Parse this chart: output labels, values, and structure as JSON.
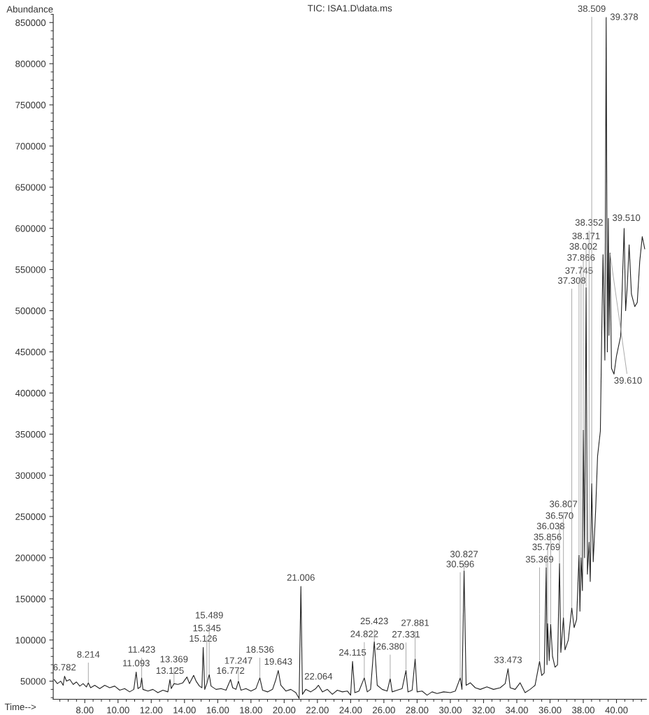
{
  "chart_data": {
    "type": "line",
    "title": "TIC: ISA1.D\\data.ms",
    "xlabel": "Time-->",
    "ylabel": "Abundance",
    "xlim": [
      6.1,
      41.8
    ],
    "xticks": [
      {
        "value": 8,
        "label": "8.00"
      },
      {
        "value": 10,
        "label": "10.00"
      },
      {
        "value": 12,
        "label": "12.00"
      },
      {
        "value": 14,
        "label": "14.00"
      },
      {
        "value": 16,
        "label": "16.00"
      },
      {
        "value": 18,
        "label": "18.00"
      },
      {
        "value": 20,
        "label": "20.00"
      },
      {
        "value": 22,
        "label": "22.00"
      },
      {
        "value": 24,
        "label": "24.00"
      },
      {
        "value": 26,
        "label": "26.00"
      },
      {
        "value": 28,
        "label": "28.00"
      },
      {
        "value": 30,
        "label": "30.00"
      },
      {
        "value": 32,
        "label": "32.00"
      },
      {
        "value": 34,
        "label": "34.00"
      },
      {
        "value": 36,
        "label": "36.00"
      },
      {
        "value": 38,
        "label": "38.00"
      },
      {
        "value": 40,
        "label": "40.00"
      }
    ],
    "ylim": [
      28000,
      860000
    ],
    "yticks": [
      50000,
      100000,
      150000,
      200000,
      250000,
      300000,
      350000,
      400000,
      450000,
      500000,
      550000,
      600000,
      650000,
      700000,
      750000,
      800000,
      850000
    ],
    "grid": false,
    "legend": false,
    "marker": "none",
    "line_style": "solid",
    "series": [
      {
        "color": "#222222",
        "x": [
          6.15,
          6.35,
          6.55,
          6.7,
          6.782,
          6.9,
          7.1,
          7.3,
          7.5,
          7.7,
          7.9,
          8.1,
          8.214,
          8.35,
          8.6,
          8.9,
          9.2,
          9.5,
          9.8,
          10.1,
          10.4,
          10.7,
          10.95,
          11.093,
          11.2,
          11.35,
          11.423,
          11.5,
          11.8,
          12.1,
          12.4,
          12.7,
          13.0,
          13.125,
          13.2,
          13.369,
          13.6,
          13.9,
          14.15,
          14.3,
          14.55,
          14.7,
          14.9,
          15.05,
          15.126,
          15.22,
          15.345,
          15.489,
          15.6,
          15.9,
          16.2,
          16.5,
          16.772,
          16.9,
          17.1,
          17.247,
          17.4,
          17.7,
          18.0,
          18.3,
          18.536,
          18.7,
          19.0,
          19.3,
          19.5,
          19.643,
          19.8,
          20.1,
          20.4,
          20.7,
          20.9,
          21.006,
          21.1,
          21.3,
          21.6,
          21.9,
          22.064,
          22.3,
          22.6,
          22.9,
          23.2,
          23.5,
          23.8,
          24.0,
          24.115,
          24.25,
          24.5,
          24.822,
          25.0,
          25.2,
          25.423,
          25.6,
          25.9,
          26.2,
          26.38,
          26.5,
          26.8,
          27.1,
          27.331,
          27.45,
          27.7,
          27.881,
          28.0,
          28.3,
          28.6,
          28.9,
          29.2,
          29.6,
          30.0,
          30.3,
          30.596,
          30.7,
          30.827,
          30.95,
          31.2,
          31.5,
          31.8,
          32.2,
          32.6,
          33.0,
          33.3,
          33.473,
          33.6,
          33.9,
          34.2,
          34.5,
          34.8,
          35.1,
          35.369,
          35.5,
          35.65,
          35.769,
          35.82,
          35.856,
          35.95,
          36.038,
          36.15,
          36.3,
          36.45,
          36.57,
          36.65,
          36.807,
          36.9,
          37.1,
          37.308,
          37.45,
          37.6,
          37.745,
          37.8,
          37.866,
          37.95,
          38.002,
          38.08,
          38.171,
          38.25,
          38.352,
          38.42,
          38.509,
          38.6,
          38.75,
          38.86,
          39.03,
          39.1,
          39.19,
          39.3,
          39.378,
          39.45,
          39.51,
          39.55,
          39.61,
          39.7,
          39.85,
          40.0,
          40.25,
          40.46,
          40.55,
          40.65,
          40.76,
          40.9,
          41.1,
          41.25,
          41.4,
          41.55,
          41.7
        ],
        "values": [
          52000,
          47000,
          50000,
          45000,
          56000,
          50000,
          52000,
          46000,
          49000,
          44000,
          47000,
          43000,
          48000,
          42000,
          45000,
          41000,
          45000,
          42000,
          44000,
          39000,
          41000,
          37000,
          40000,
          61000,
          41000,
          43000,
          54000,
          40000,
          38000,
          40000,
          36000,
          39000,
          37000,
          52000,
          41000,
          47000,
          46000,
          48000,
          55000,
          47000,
          57000,
          50000,
          44000,
          42000,
          91000,
          40000,
          47000,
          58000,
          44000,
          40000,
          41000,
          39000,
          52000,
          42000,
          40000,
          50000,
          39000,
          41000,
          38000,
          41000,
          54000,
          39000,
          37000,
          40000,
          52000,
          63000,
          45000,
          38000,
          40000,
          36000,
          29000,
          165000,
          34000,
          40000,
          37000,
          41000,
          45000,
          37000,
          40000,
          34000,
          39000,
          37000,
          38000,
          33000,
          74000,
          36000,
          38000,
          54000,
          37000,
          40000,
          98000,
          45000,
          40000,
          38000,
          53000,
          37000,
          39000,
          41000,
          63000,
          37000,
          39000,
          77000,
          37000,
          38000,
          33000,
          37000,
          35000,
          37000,
          36000,
          38000,
          54000,
          40000,
          184000,
          45000,
          48000,
          42000,
          40000,
          43000,
          40000,
          42000,
          47000,
          65000,
          42000,
          40000,
          48000,
          36000,
          40000,
          45000,
          74000,
          57000,
          60000,
          188000,
          70000,
          120000,
          75000,
          119000,
          80000,
          67000,
          70000,
          193000,
          85000,
          127000,
          88000,
          100000,
          139000,
          115000,
          125000,
          203000,
          135000,
          200000,
          160000,
          355000,
          200000,
          528000,
          180000,
          219000,
          171000,
          290000,
          195000,
          260000,
          323000,
          354000,
          458000,
          568000,
          440000,
          856000,
          450000,
          612000,
          470000,
          570000,
          430000,
          423000,
          445000,
          469000,
          600000,
          500000,
          530000,
          580000,
          520000,
          505000,
          510000,
          560000,
          590000,
          575000
        ]
      }
    ],
    "annotations": [
      {
        "text": "6.782",
        "x": 6.782,
        "y": 56000
      },
      {
        "text": "8.214",
        "x": 8.214,
        "y": 48000
      },
      {
        "text": "11.093",
        "x": 11.093,
        "y": 61000
      },
      {
        "text": "11.423",
        "x": 11.423,
        "y": 54000
      },
      {
        "text": "13.125",
        "x": 13.125,
        "y": 52000
      },
      {
        "text": "13.369",
        "x": 13.369,
        "y": 47000
      },
      {
        "text": "15.126",
        "x": 15.126,
        "y": 91000
      },
      {
        "text": "15.345",
        "x": 15.345,
        "y": 47000
      },
      {
        "text": "15.489",
        "x": 15.489,
        "y": 58000
      },
      {
        "text": "16.772",
        "x": 16.772,
        "y": 52000
      },
      {
        "text": "17.247",
        "x": 17.247,
        "y": 50000
      },
      {
        "text": "18.536",
        "x": 18.536,
        "y": 54000
      },
      {
        "text": "19.643",
        "x": 19.643,
        "y": 63000
      },
      {
        "text": "21.006",
        "x": 21.006,
        "y": 165000
      },
      {
        "text": "22.064",
        "x": 22.064,
        "y": 45000
      },
      {
        "text": "24.115",
        "x": 24.115,
        "y": 74000
      },
      {
        "text": "24.822",
        "x": 24.822,
        "y": 54000
      },
      {
        "text": "25.423",
        "x": 25.423,
        "y": 98000
      },
      {
        "text": "26.380",
        "x": 26.38,
        "y": 53000
      },
      {
        "text": "27.331",
        "x": 27.331,
        "y": 63000
      },
      {
        "text": "27.881",
        "x": 27.881,
        "y": 77000
      },
      {
        "text": "30.596",
        "x": 30.596,
        "y": 54000
      },
      {
        "text": "30.827",
        "x": 30.827,
        "y": 184000
      },
      {
        "text": "33.473",
        "x": 33.473,
        "y": 65000
      },
      {
        "text": "35.369",
        "x": 35.369,
        "y": 74000
      },
      {
        "text": "35.769",
        "x": 35.769,
        "y": 188000
      },
      {
        "text": "35.856",
        "x": 35.856,
        "y": 120000
      },
      {
        "text": "36.038",
        "x": 36.038,
        "y": 119000
      },
      {
        "text": "36.570",
        "x": 36.57,
        "y": 193000
      },
      {
        "text": "36.807",
        "x": 36.807,
        "y": 127000
      },
      {
        "text": "37.308",
        "x": 37.308,
        "y": 139000
      },
      {
        "text": "37.745",
        "x": 37.745,
        "y": 203000
      },
      {
        "text": "37.866",
        "x": 37.866,
        "y": 200000
      },
      {
        "text": "38.002",
        "x": 38.002,
        "y": 355000
      },
      {
        "text": "38.171",
        "x": 38.171,
        "y": 528000
      },
      {
        "text": "38.352",
        "x": 38.352,
        "y": 219000
      },
      {
        "text": "38.509",
        "x": 38.509,
        "y": 290000
      },
      {
        "text": "39.378",
        "x": 39.378,
        "y": 856000
      },
      {
        "text": "39.510",
        "x": 39.51,
        "y": 612000
      },
      {
        "text": "39.610",
        "x": 39.61,
        "y": 570000
      }
    ]
  }
}
